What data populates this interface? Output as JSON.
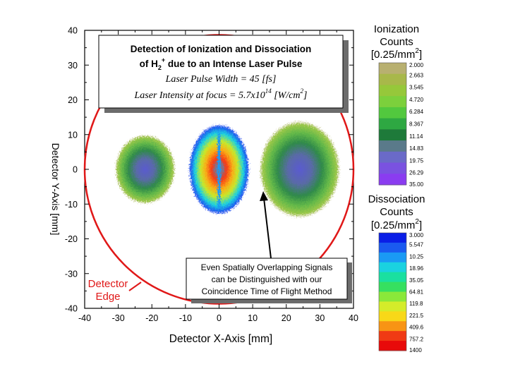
{
  "chart_data": {
    "type": "heatmap",
    "xlabel": "Detector X-Axis [mm]",
    "ylabel": "Detector Y-Axis [mm]",
    "xlim": [
      -40,
      40
    ],
    "ylim": [
      -40,
      40
    ],
    "x_ticks": [
      -40,
      -30,
      -20,
      -10,
      0,
      10,
      20,
      30,
      40
    ],
    "y_ticks": [
      40,
      30,
      20,
      10,
      0,
      -10,
      -20,
      -30,
      -40
    ],
    "detector_edge_radius": 40,
    "title_box": {
      "line1": "Detection of Ionization and Dissociation",
      "line2_prefix": "of H",
      "line2_sub": "2",
      "line2_sup": "+",
      "line2_suffix": " due to an Intense Laser Pulse",
      "line3": "Laser Pulse Width = 45 [fs]",
      "line4_prefix": "Laser Intensity at focus = 5.7x10",
      "line4_sup": "14",
      "line4_suffix": " [W/cm",
      "line4_sup2": "2",
      "line4_end": "]"
    },
    "annotation": [
      "Even Spatially Overlapping Signals",
      "can be Distinguished with our",
      "Coincidence Time of Flight Method"
    ],
    "detector_edge_label": [
      "Detector",
      "Edge"
    ],
    "blobs": [
      {
        "name": "ionization-left",
        "cx": -22,
        "cy": 0,
        "rx": 9,
        "ry": 10
      },
      {
        "name": "dissociation-center",
        "cx": 0,
        "cy": 0,
        "rx": 9,
        "ry": 13
      },
      {
        "name": "ionization-right",
        "cx": 24,
        "cy": 0,
        "rx": 12,
        "ry": 14
      }
    ],
    "ionization_scale": {
      "title": [
        "Ionization",
        "Counts",
        "[0.25/mm",
        "2",
        "]"
      ],
      "labels": [
        "2.000",
        "2.663",
        "3.545",
        "4.720",
        "6.284",
        "8.367",
        "11.14",
        "14.83",
        "19.75",
        "26.29",
        "35.00"
      ],
      "colors": [
        "#b8b070",
        "#a8b84a",
        "#96c83a",
        "#7cd03c",
        "#52c83e",
        "#2ea842",
        "#1e7a3a",
        "#5a7a8a",
        "#6a6ac8",
        "#7a52e0",
        "#8a3cf0"
      ]
    },
    "dissociation_scale": {
      "title": [
        "Dissociation",
        "Counts",
        "[0.25/mm",
        "2",
        "]"
      ],
      "labels": [
        "3.000",
        "5.547",
        "10.25",
        "18.96",
        "35.05",
        "64.81",
        "119.8",
        "221.5",
        "409.6",
        "757.2",
        "1400"
      ],
      "colors": [
        "#0a1ee6",
        "#1a5af0",
        "#1a9af4",
        "#1ad2e0",
        "#1ae0a0",
        "#36e060",
        "#8ae83a",
        "#d4ec2a",
        "#f8d818",
        "#f89414",
        "#f03a14",
        "#e80a0a"
      ]
    }
  }
}
